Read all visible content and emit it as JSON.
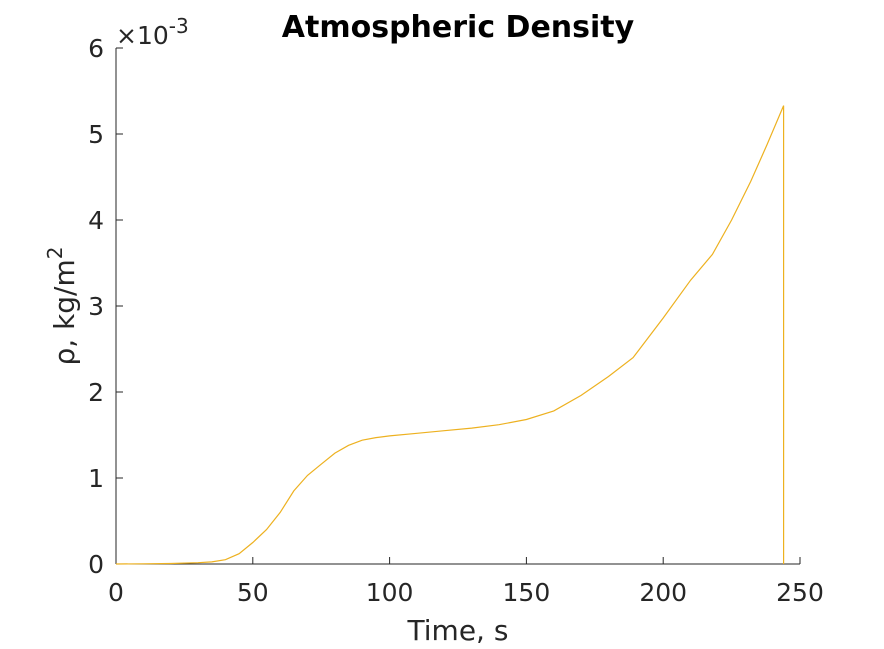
{
  "chart_data": {
    "type": "line",
    "title": "Atmospheric Density",
    "xlabel": "Time, s",
    "ylabel_main": "ρ, kg/m",
    "ylabel_sup": "2",
    "y_exponent_prefix": "×10",
    "y_exponent_power": "-3",
    "xlim": [
      0,
      250
    ],
    "ylim": [
      0,
      6
    ],
    "xticks": [
      0,
      50,
      100,
      150,
      200,
      250
    ],
    "yticks": [
      0,
      1,
      2,
      3,
      4,
      5,
      6
    ],
    "xtick_labels": [
      "0",
      "50",
      "100",
      "150",
      "200",
      "250"
    ],
    "ytick_labels": [
      "0",
      "1",
      "2",
      "3",
      "4",
      "5",
      "6"
    ],
    "grid": false,
    "line_color": "#EDB120",
    "series": [
      {
        "x": [
          0,
          10,
          20,
          30,
          35,
          40,
          45,
          50,
          55,
          60,
          65,
          70,
          75,
          80,
          85,
          90,
          95,
          100,
          110,
          120,
          130,
          140,
          150,
          160,
          170,
          180,
          189,
          200,
          210,
          218,
          225,
          232,
          238,
          244,
          244
        ],
        "y": [
          0,
          0.002,
          0.006,
          0.015,
          0.025,
          0.05,
          0.12,
          0.25,
          0.4,
          0.6,
          0.85,
          1.03,
          1.16,
          1.29,
          1.38,
          1.44,
          1.47,
          1.49,
          1.52,
          1.55,
          1.58,
          1.62,
          1.68,
          1.78,
          1.96,
          2.18,
          2.4,
          2.86,
          3.3,
          3.6,
          4.0,
          4.45,
          4.88,
          5.33,
          0
        ]
      }
    ]
  }
}
